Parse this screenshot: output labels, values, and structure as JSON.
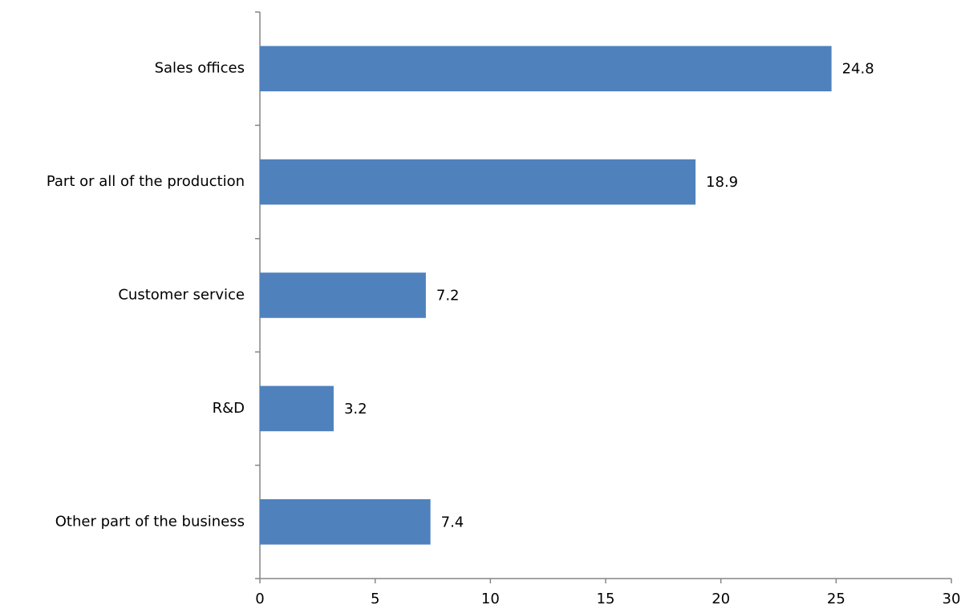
{
  "chart_data": {
    "type": "bar",
    "horizontal": true,
    "categories": [
      "Sales offices",
      "Part or all of the production",
      "Customer service",
      "R&D",
      "Other part of the business"
    ],
    "values": [
      24.8,
      18.9,
      7.2,
      3.2,
      7.4
    ],
    "color": "#4f81bd",
    "xlim": [
      0,
      30
    ],
    "xticks": [
      0,
      5,
      10,
      15,
      20,
      25,
      30
    ],
    "grid": false,
    "data_labels": true
  }
}
